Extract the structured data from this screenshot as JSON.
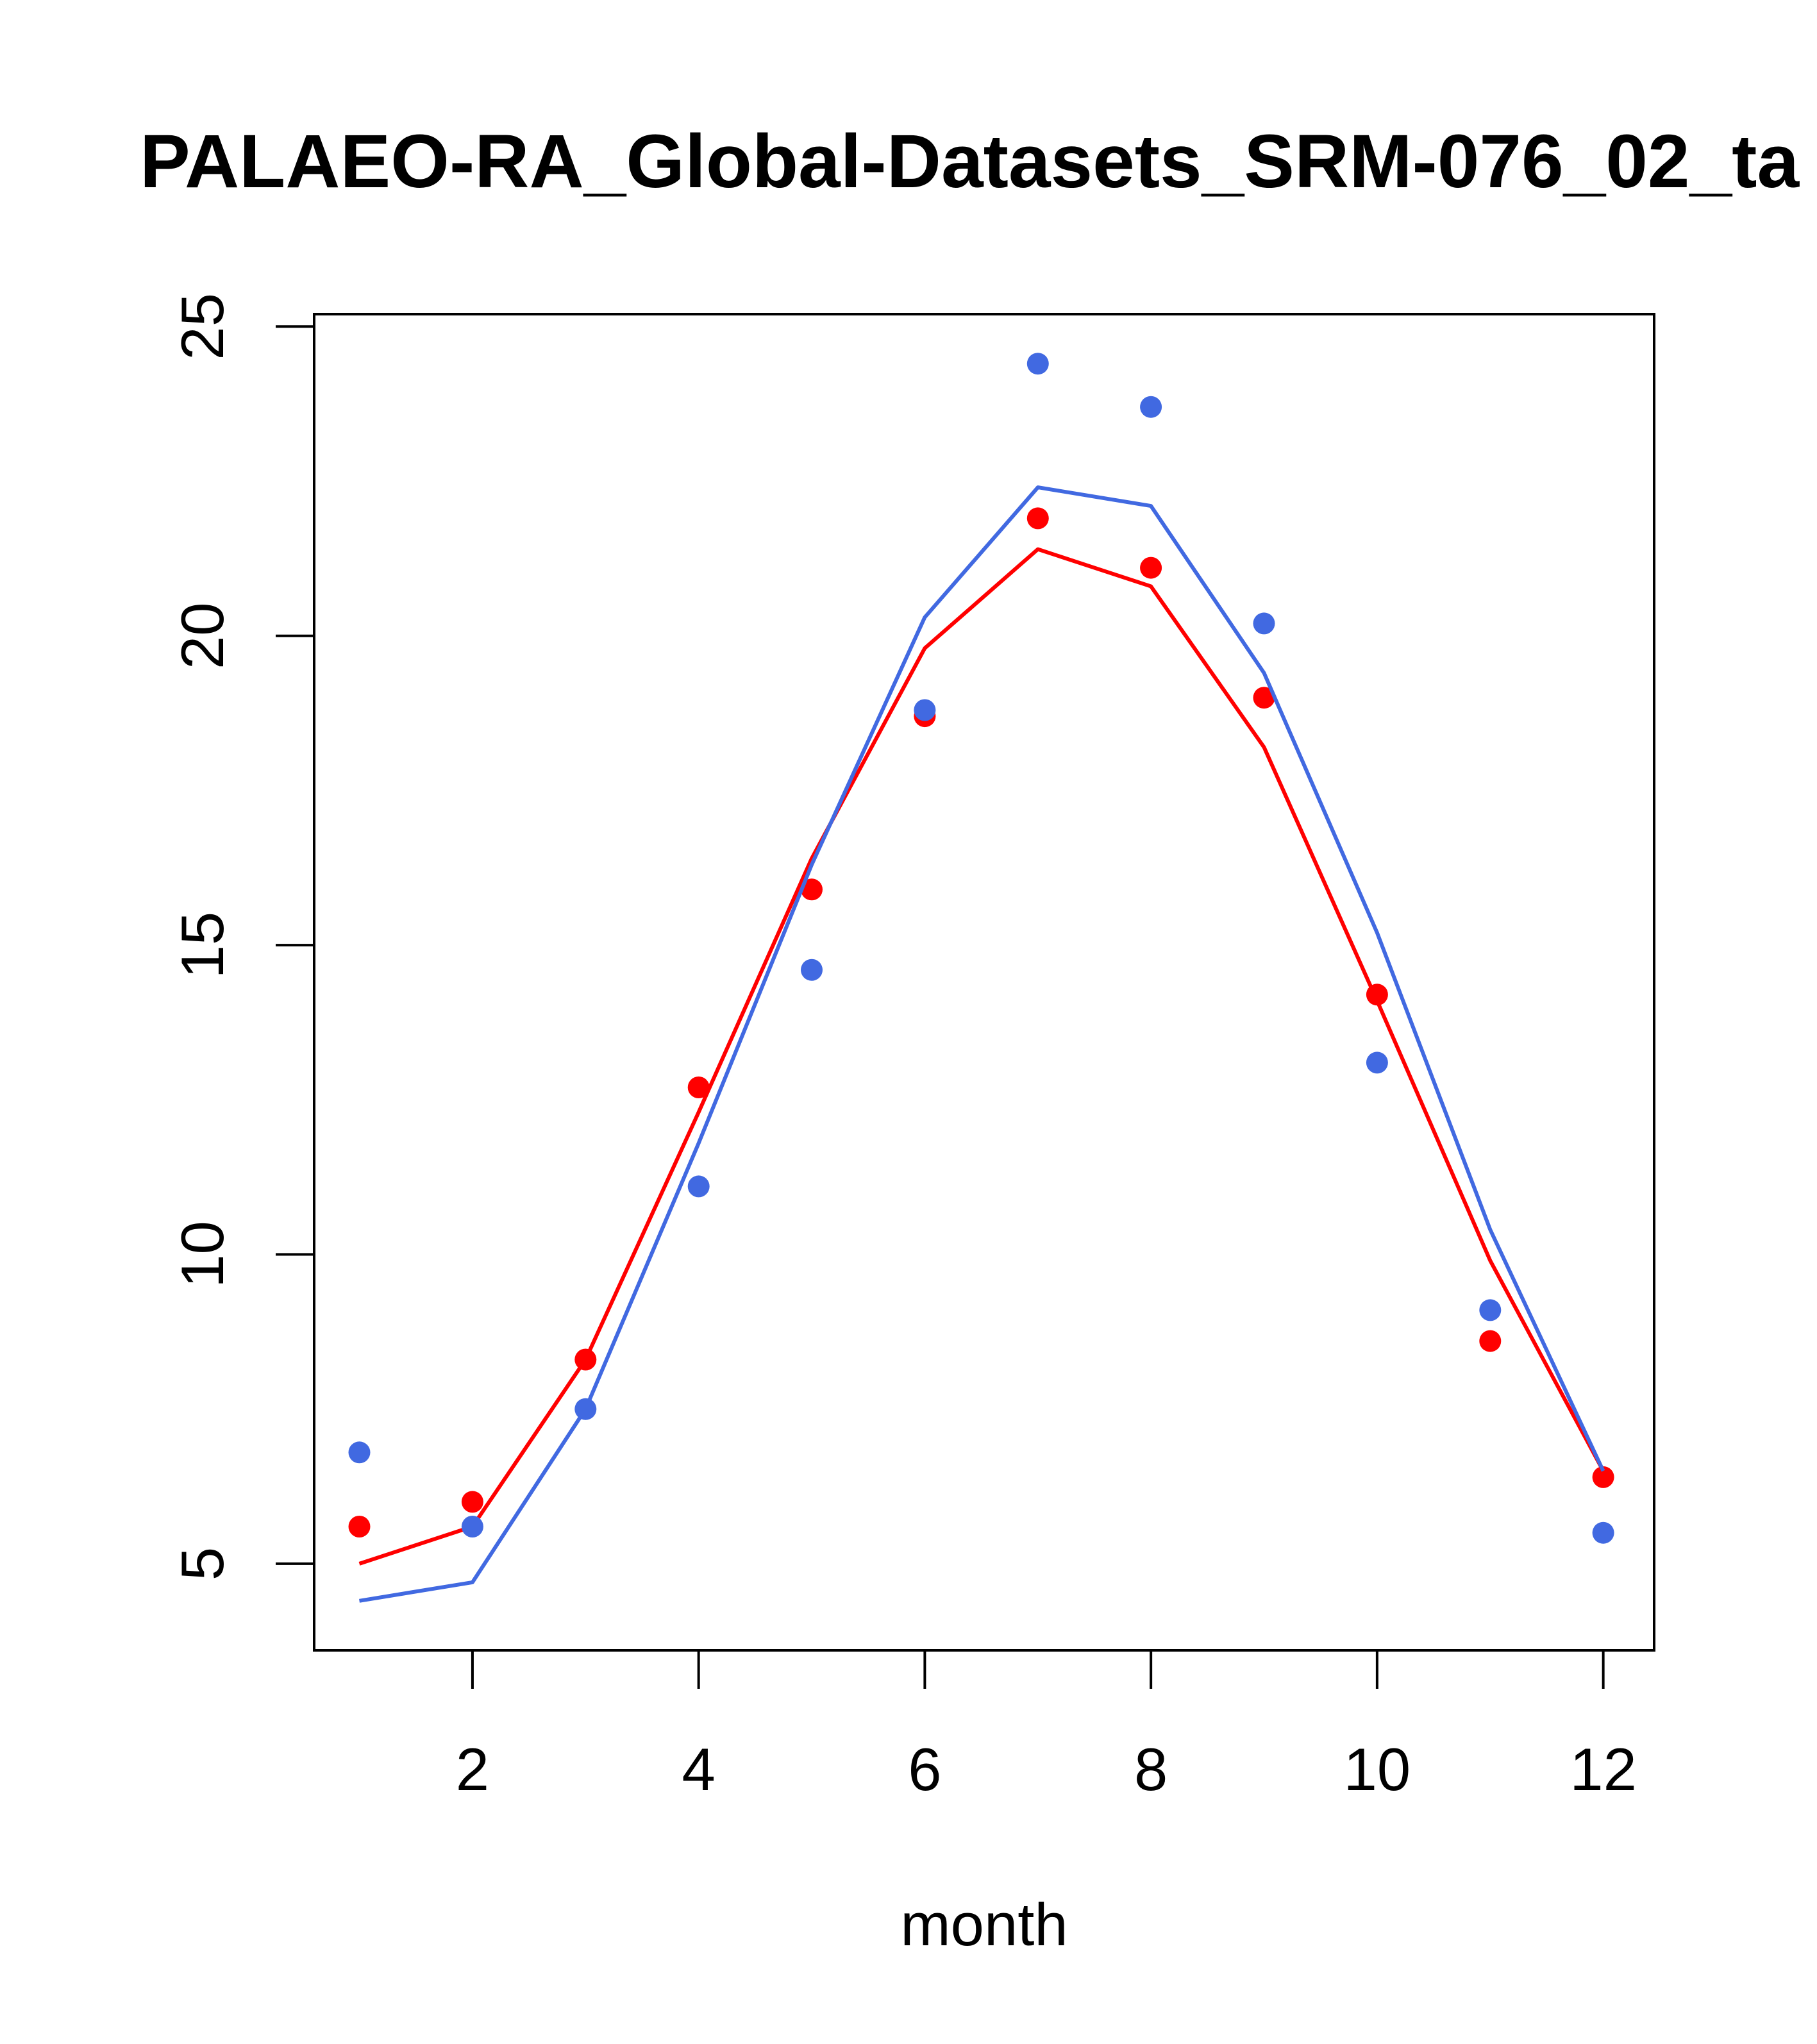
{
  "chart_data": {
    "type": "line",
    "title": "PALAEO-RA_Global-Datasets_SRM-076_02_ta",
    "xlabel": "month",
    "ylabel": "",
    "xlim": [
      0.6,
      12.45
    ],
    "ylim": [
      3.6,
      25.2
    ],
    "x_ticks": [
      2,
      4,
      6,
      8,
      10,
      12
    ],
    "y_ticks": [
      5,
      10,
      15,
      20,
      25
    ],
    "grid": false,
    "legend": "none",
    "x": [
      1,
      2,
      3,
      4,
      5,
      6,
      7,
      8,
      9,
      10,
      11,
      12
    ],
    "series": [
      {
        "color": "#ff0000",
        "line": [
          5.0,
          5.6,
          8.3,
          12.3,
          16.4,
          19.8,
          21.4,
          20.8,
          18.2,
          14.1,
          9.9,
          6.5
        ],
        "points": [
          5.6,
          6.0,
          8.3,
          12.7,
          15.9,
          18.7,
          21.9,
          21.1,
          19.0,
          14.2,
          8.6,
          6.4
        ]
      },
      {
        "color": "#4169e1",
        "line": [
          4.4,
          4.7,
          7.5,
          11.8,
          16.3,
          20.3,
          22.4,
          22.1,
          19.4,
          15.2,
          10.4,
          6.5
        ],
        "points": [
          6.8,
          5.6,
          7.5,
          11.1,
          14.6,
          18.8,
          24.4,
          23.7,
          20.2,
          13.1,
          9.1,
          5.5
        ]
      }
    ]
  }
}
